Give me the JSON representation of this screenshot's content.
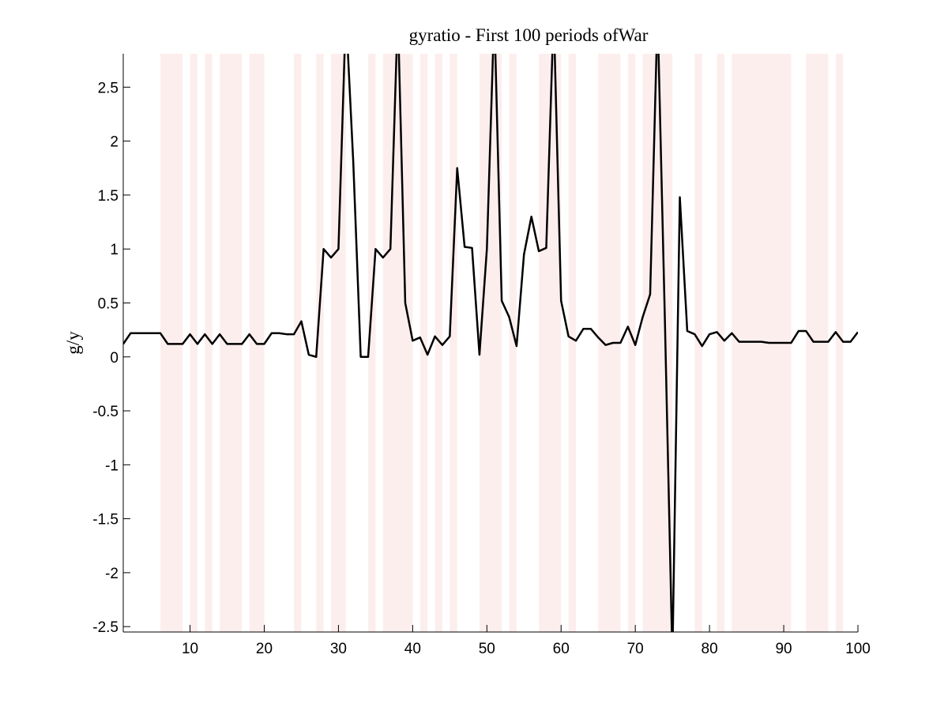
{
  "chart_data": {
    "type": "line",
    "title": "gyratio - First 100 periods ofWar",
    "y_label": "g/y",
    "x": [
      1,
      2,
      3,
      4,
      5,
      6,
      7,
      8,
      9,
      10,
      11,
      12,
      13,
      14,
      15,
      16,
      17,
      18,
      19,
      20,
      21,
      22,
      23,
      24,
      25,
      26,
      27,
      28,
      29,
      30,
      31,
      32,
      33,
      34,
      35,
      36,
      37,
      38,
      39,
      40,
      41,
      42,
      43,
      44,
      45,
      46,
      47,
      48,
      49,
      50,
      51,
      52,
      53,
      54,
      55,
      56,
      57,
      58,
      59,
      60,
      61,
      62,
      63,
      64,
      65,
      66,
      67,
      68,
      69,
      70,
      71,
      72,
      73,
      74,
      75,
      76,
      77,
      78,
      79,
      80,
      81,
      82,
      83,
      84,
      85,
      86,
      87,
      88,
      89,
      90,
      91,
      92,
      93,
      94,
      95,
      96,
      97,
      98,
      99,
      100
    ],
    "values": [
      0.12,
      0.22,
      0.22,
      0.22,
      0.22,
      0.22,
      0.12,
      0.12,
      0.12,
      0.21,
      0.12,
      0.21,
      0.12,
      0.21,
      0.12,
      0.12,
      0.12,
      0.21,
      0.12,
      0.12,
      0.22,
      0.22,
      0.21,
      0.21,
      0.33,
      0.02,
      0.0,
      1.0,
      0.92,
      1.0,
      3.2,
      1.8,
      0.0,
      0.0,
      1.0,
      0.92,
      1.0,
      3.2,
      0.5,
      0.15,
      0.18,
      0.02,
      0.19,
      0.11,
      0.19,
      1.75,
      1.02,
      1.01,
      0.02,
      1.0,
      3.2,
      0.52,
      0.37,
      0.1,
      0.95,
      1.3,
      0.98,
      1.01,
      3.2,
      0.52,
      0.19,
      0.15,
      0.26,
      0.26,
      0.18,
      0.11,
      0.13,
      0.13,
      0.28,
      0.11,
      0.37,
      0.58,
      3.2,
      0.3,
      -2.8,
      1.48,
      0.24,
      0.21,
      0.1,
      0.21,
      0.23,
      0.15,
      0.22,
      0.14,
      0.14,
      0.14,
      0.14,
      0.13,
      0.13,
      0.13,
      0.13,
      0.24,
      0.24,
      0.14,
      0.14,
      0.14,
      0.23,
      0.14,
      0.14,
      0.23
    ],
    "color": "#000000",
    "shaded_periods": [
      [
        6,
        9
      ],
      [
        10,
        11
      ],
      [
        12,
        13
      ],
      [
        14,
        17
      ],
      [
        18,
        20
      ],
      [
        24,
        25
      ],
      [
        27,
        28
      ],
      [
        29,
        31
      ],
      [
        34,
        35
      ],
      [
        36,
        40
      ],
      [
        41,
        42
      ],
      [
        43,
        44
      ],
      [
        45,
        46
      ],
      [
        49,
        52
      ],
      [
        53,
        54
      ],
      [
        57,
        60
      ],
      [
        61,
        62
      ],
      [
        65,
        68
      ],
      [
        69,
        70
      ],
      [
        71,
        75
      ],
      [
        78,
        79
      ],
      [
        81,
        82
      ],
      [
        83,
        91
      ],
      [
        93,
        96
      ],
      [
        97,
        98
      ]
    ],
    "shade_color": "#fdeeee",
    "xlim": [
      1,
      100
    ],
    "xticks": [
      10,
      20,
      30,
      40,
      50,
      60,
      70,
      80,
      90,
      100
    ],
    "ylim": [
      -2.55,
      2.81
    ],
    "yticks": [
      -2.5,
      -2,
      -1.5,
      -1,
      -0.5,
      0,
      0.5,
      1,
      1.5,
      2,
      2.5
    ]
  }
}
